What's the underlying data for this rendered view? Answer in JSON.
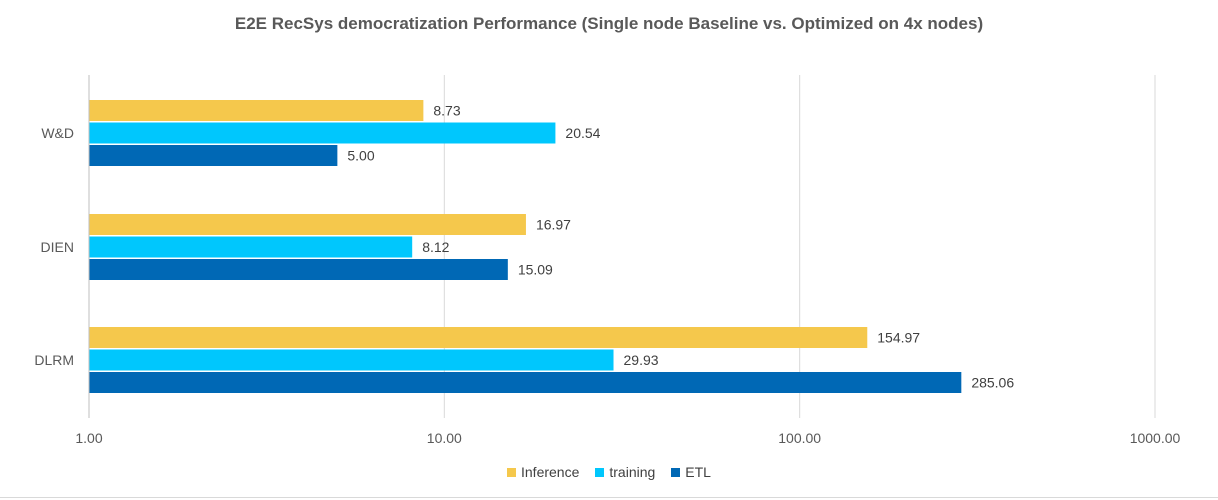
{
  "chart_data": {
    "type": "bar",
    "orientation": "horizontal",
    "title": "E2E RecSys democratization Performance (Single node Baseline  vs. Optimized on 4x nodes)",
    "categories": [
      "W&D",
      "DIEN",
      "DLRM"
    ],
    "series": [
      {
        "name": "Inference",
        "color": "#F5C84C",
        "values": [
          8.73,
          16.97,
          154.97
        ],
        "labels": [
          "8.73",
          "16.97",
          "154.97"
        ]
      },
      {
        "name": "training",
        "color": "#00C7FD",
        "values": [
          20.54,
          8.12,
          29.93
        ],
        "labels": [
          "20.54",
          "8.12",
          "29.93"
        ]
      },
      {
        "name": "ETL",
        "color": "#0068B5",
        "values": [
          5.0,
          15.09,
          285.06
        ],
        "labels": [
          "5.00",
          "15.09",
          "285.06"
        ]
      }
    ],
    "x_scale": "log",
    "xlim": [
      1,
      1000
    ],
    "x_ticks": [
      1,
      10,
      100,
      1000
    ],
    "x_tick_labels": [
      "1.00",
      "10.00",
      "100.00",
      "1000.00"
    ],
    "xlabel": "",
    "ylabel": "",
    "grid": "vertical",
    "legend_position": "bottom"
  }
}
